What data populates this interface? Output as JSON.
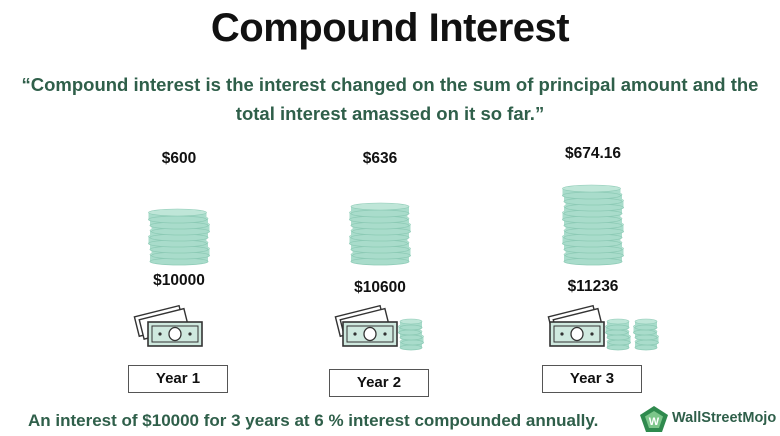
{
  "title": "Compound Interest",
  "definition": "“Compound interest is the interest changed on the sum of principal amount and the total interest amassed on it so far.”",
  "years": [
    {
      "label": "Year 1",
      "interest": "$600",
      "principal": "$10000"
    },
    {
      "label": "Year 2",
      "interest": "$636",
      "principal": "$10600"
    },
    {
      "label": "Year 3",
      "interest": "$674.16",
      "principal": "$11236"
    }
  ],
  "footer_note": "An interest of $10000 for 3 years at 6 % interest compounded annually.",
  "brand": {
    "name": "WallStreetMojo"
  },
  "colors": {
    "coin": "#a9dccb",
    "coin_edge": "#8ccab5",
    "text_green": "#2f5f4a",
    "bill": "#cfe9df"
  },
  "icons": [
    "coin-stack-icon",
    "cash-bills-icon",
    "wallstreetmojo-logo-icon"
  ]
}
